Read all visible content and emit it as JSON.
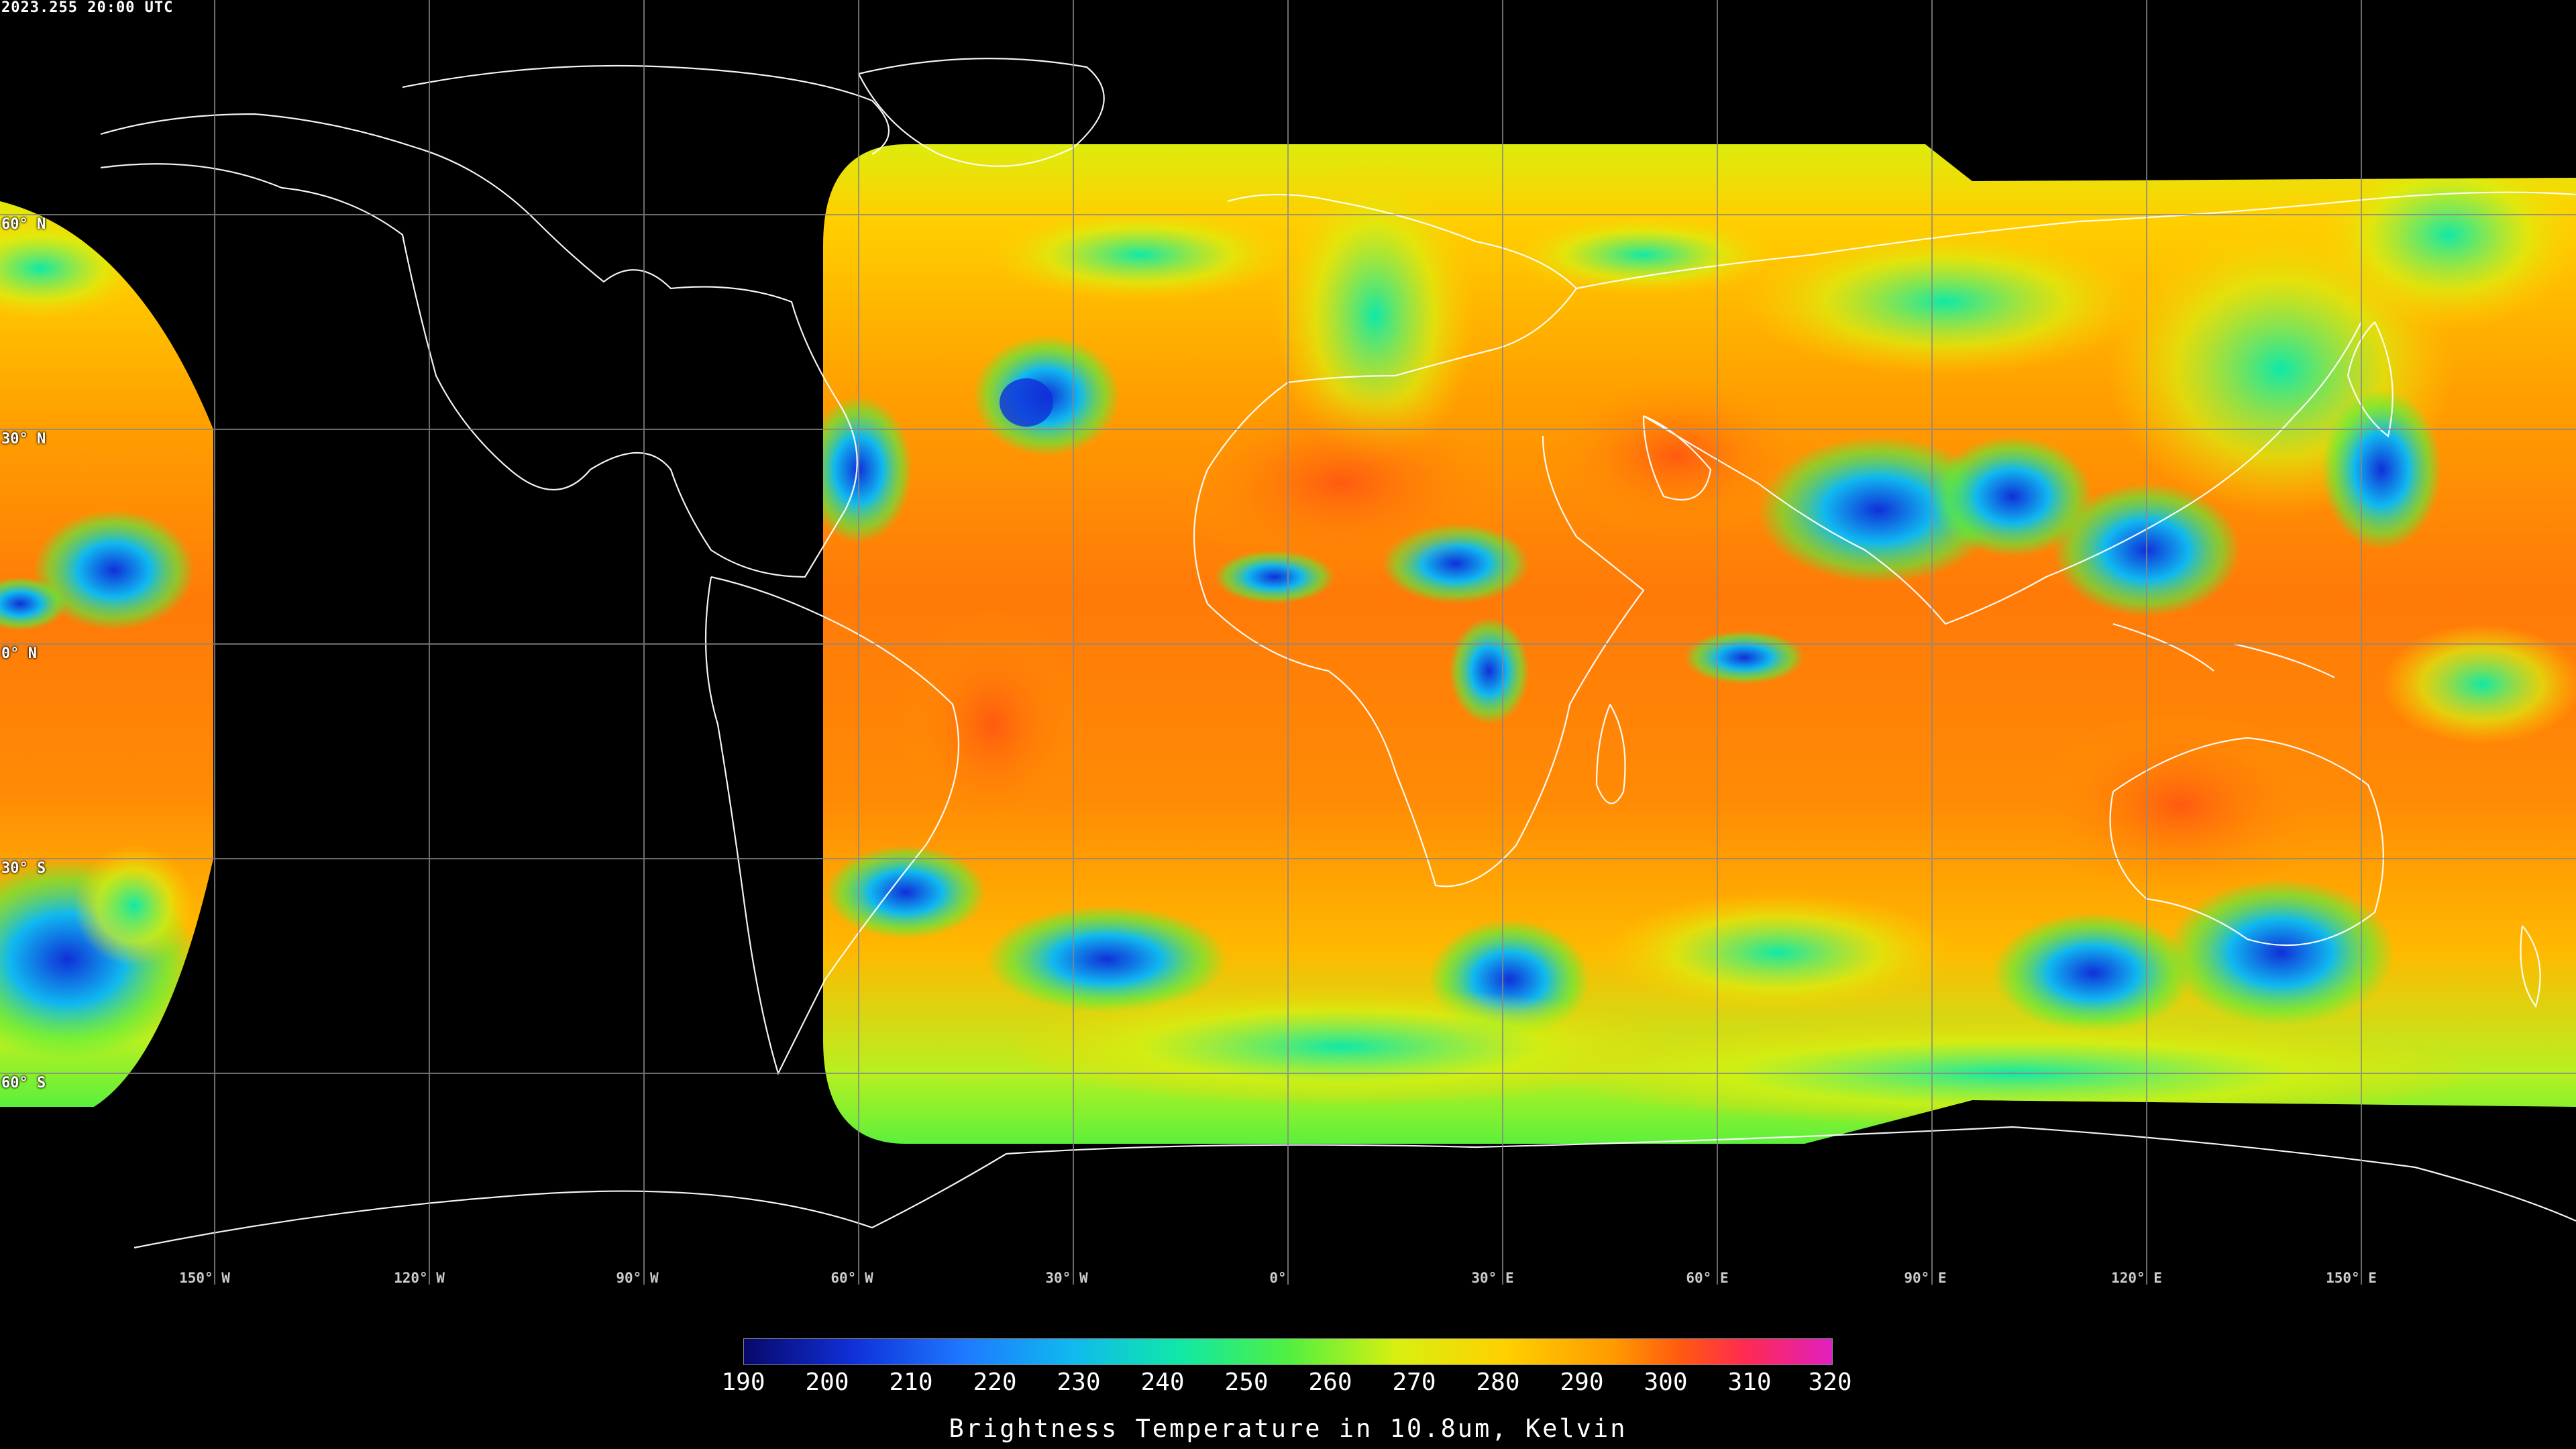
{
  "header": {
    "timestamp": "2023.255 20:00 UTC"
  },
  "grid": {
    "lat_labels": [
      "60° N",
      "30° N",
      "0° N",
      "30° S",
      "60° S"
    ],
    "lon_labels": [
      "150° W",
      "120° W",
      "90° W",
      "60° W",
      "30° W",
      "0°",
      "30° E",
      "60° E",
      "90° E",
      "120° E",
      "150° E"
    ]
  },
  "colorbar": {
    "min": 190,
    "max": 320,
    "ticks": [
      "190",
      "200",
      "210",
      "220",
      "230",
      "240",
      "250",
      "260",
      "270",
      "280",
      "290",
      "300",
      "310",
      "320"
    ],
    "title": "Brightness Temperature in 10.8um, Kelvin",
    "colors": [
      "#08086a",
      "#1030d8",
      "#1e78ff",
      "#10b8f0",
      "#10e8a8",
      "#50f040",
      "#d8f010",
      "#ffd000",
      "#ff9a00",
      "#ff5a10",
      "#ff2a50",
      "#e020c0"
    ]
  },
  "map": {
    "projection": "equirectangular",
    "background_color": "#000000",
    "gridline_color": "#888888",
    "coastline_color": "#ffffff"
  }
}
